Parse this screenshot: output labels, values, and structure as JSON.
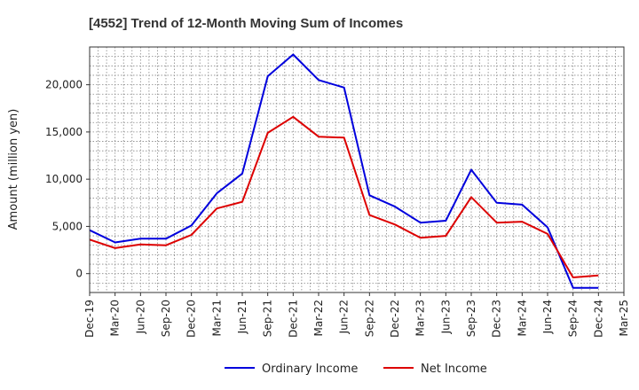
{
  "chart_data": {
    "type": "line",
    "title": "[4552]  Trend of 12-Month Moving Sum of Incomes",
    "ylabel": "Amount (million yen)",
    "xlabel": "",
    "ylim": [
      -2000,
      24000
    ],
    "y_ticks": [
      0,
      5000,
      10000,
      15000,
      20000
    ],
    "y_tick_labels": [
      "0",
      "5,000",
      "10,000",
      "15,000",
      "20,000"
    ],
    "x_tick_labels": [
      "Dec-19",
      "Mar-20",
      "Jun-20",
      "Sep-20",
      "Dec-20",
      "Mar-21",
      "Jun-21",
      "Sep-21",
      "Dec-21",
      "Mar-22",
      "Jun-22",
      "Sep-22",
      "Dec-22",
      "Mar-23",
      "Jun-23",
      "Sep-23",
      "Dec-23",
      "Mar-24",
      "Jun-24",
      "Sep-24",
      "Dec-24",
      "Mar-25"
    ],
    "grid": true,
    "legend_position": "bottom",
    "series": [
      {
        "name": "Ordinary Income",
        "color": "#0000dd",
        "values": [
          4600,
          3300,
          3700,
          3700,
          5100,
          8500,
          10600,
          20900,
          23200,
          20500,
          19700,
          8300,
          7100,
          5400,
          5600,
          11000,
          7500,
          7300,
          4900,
          -1500,
          -1500
        ]
      },
      {
        "name": "Net Income",
        "color": "#dd0000",
        "values": [
          3600,
          2700,
          3100,
          3000,
          4100,
          6900,
          7600,
          14900,
          16600,
          14500,
          14400,
          6200,
          5200,
          3800,
          4000,
          8100,
          5400,
          5500,
          4200,
          -400,
          -200
        ]
      }
    ]
  }
}
